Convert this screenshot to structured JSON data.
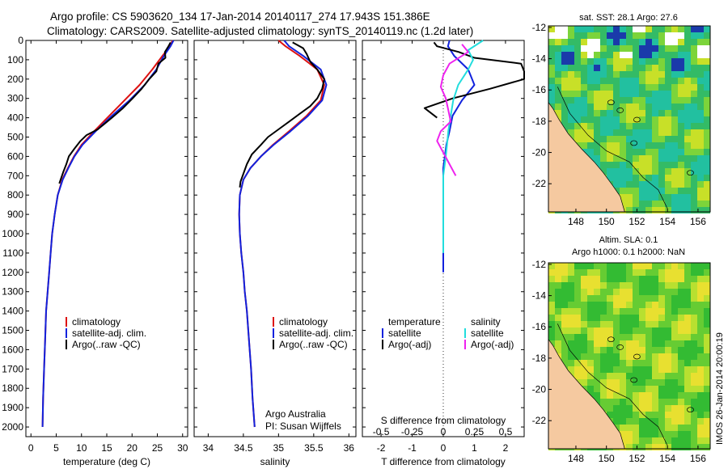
{
  "header": {
    "line1": "Argo profile: CS 5903620_134 17-Jan-2014 20140117_274 17.943S 151.386E",
    "line2": "Climatology: CARS2009. Satellite-adjusted climatology: synTS_20140119.nc (1.2d later)"
  },
  "colors": {
    "climatology": "#dd1111",
    "satellite": "#1122dd",
    "argo": "#000000",
    "sal_satellite": "#22dddd",
    "sal_argo": "#ee22ee",
    "land": "#f5c9a0"
  },
  "legend": {
    "climatology": "climatology",
    "satellite_adj": "satellite-adj. clim.",
    "argo_raw": "Argo(..raw -QC)",
    "diff_temperature": "temperature",
    "diff_salinity": "salinity",
    "satellite": "satellite",
    "argo_adj": "Argo(-adj)"
  },
  "credits": {
    "line1": "Argo Australia",
    "line2": "PI: Susan Wijffels"
  },
  "sst_map": {
    "title": "sat. SST: 28.1  Argo: 27.6",
    "xticks": [
      "148",
      "150",
      "152",
      "154",
      "156"
    ],
    "yticks": [
      "-12",
      "-14",
      "-16",
      "-18",
      "-20",
      "-22"
    ]
  },
  "sla_map": {
    "title1": "Altim. SLA: 0.1",
    "title2": "Argo h1000: 0.1  h2000: NaN",
    "xticks": [
      "148",
      "150",
      "152",
      "154",
      "156"
    ],
    "yticks": [
      "-12",
      "-14",
      "-16",
      "-18",
      "-20",
      "-22"
    ]
  },
  "watermark": "IMOS 26-Jan-2014 20:00:19",
  "chart_data": [
    {
      "type": "line",
      "xlabel": "temperature (deg C)",
      "ylabel": "",
      "xlim": [
        -1,
        31
      ],
      "ylim": [
        2050,
        0
      ],
      "xticks": [
        0,
        5,
        10,
        15,
        20,
        25,
        30
      ],
      "yticks": [
        0,
        100,
        200,
        300,
        400,
        500,
        600,
        700,
        800,
        900,
        1000,
        1100,
        1200,
        1300,
        1400,
        1500,
        1600,
        1700,
        1800,
        1900,
        2000
      ],
      "series": [
        {
          "name": "climatology",
          "color": "#dd1111",
          "x": [
            28.0,
            27.5,
            26.0,
            24.0,
            21.5,
            18.5,
            15.5,
            12.5,
            10.0,
            8.5,
            7.3,
            6.2,
            5.3,
            4.7,
            4.2,
            3.9,
            3.6,
            3.3,
            3.0,
            2.8,
            2.6,
            2.4,
            2.3
          ],
          "y": [
            0,
            30,
            80,
            150,
            230,
            310,
            390,
            470,
            540,
            600,
            660,
            720,
            800,
            900,
            1000,
            1100,
            1200,
            1300,
            1400,
            1550,
            1700,
            1850,
            2000
          ]
        },
        {
          "name": "satellite-adj. clim.",
          "color": "#1122dd",
          "x": [
            28.2,
            27.6,
            26.3,
            24.8,
            22.5,
            19.5,
            16.0,
            12.8,
            10.2,
            8.6,
            7.4,
            6.3,
            5.3,
            4.7,
            4.2,
            3.9,
            3.6,
            3.3,
            3.0,
            2.8,
            2.6,
            2.4,
            2.3
          ],
          "y": [
            0,
            30,
            80,
            150,
            230,
            310,
            390,
            470,
            540,
            600,
            660,
            720,
            800,
            900,
            1000,
            1100,
            1200,
            1300,
            1400,
            1550,
            1700,
            1850,
            2000
          ]
        },
        {
          "name": "Argo(..raw -QC)",
          "color": "#000000",
          "x": [
            27.6,
            27.2,
            26.5,
            26.6,
            25.2,
            24.8,
            23.4,
            21.9,
            20.1,
            18.2,
            16.0,
            13.2,
            11.0,
            9.8,
            8.6,
            7.5,
            7.0,
            6.4,
            6.0,
            5.6
          ],
          "y": [
            10,
            30,
            60,
            90,
            120,
            160,
            200,
            250,
            300,
            350,
            400,
            460,
            490,
            520,
            560,
            600,
            640,
            680,
            710,
            740
          ]
        }
      ]
    },
    {
      "type": "line",
      "xlabel": "salinity",
      "ylabel": "",
      "xlim": [
        33.8,
        36.1
      ],
      "ylim": [
        2050,
        0
      ],
      "xticks": [
        34,
        34.5,
        35,
        35.5,
        36
      ],
      "series": [
        {
          "name": "climatology",
          "color": "#dd1111",
          "x": [
            35.0,
            35.1,
            35.3,
            35.55,
            35.65,
            35.6,
            35.4,
            35.15,
            34.92,
            34.75,
            34.6,
            34.5,
            34.45,
            34.44,
            34.45,
            34.47,
            34.5,
            34.52,
            34.55,
            34.58,
            34.61,
            34.63,
            34.66
          ],
          "y": [
            0,
            30,
            80,
            150,
            230,
            310,
            390,
            470,
            540,
            600,
            660,
            720,
            800,
            900,
            1000,
            1100,
            1200,
            1300,
            1400,
            1550,
            1700,
            1850,
            2000
          ]
        },
        {
          "name": "satellite-adj. clim.",
          "color": "#1122dd",
          "x": [
            35.08,
            35.15,
            35.35,
            35.6,
            35.68,
            35.62,
            35.42,
            35.17,
            34.93,
            34.75,
            34.6,
            34.5,
            34.45,
            34.44,
            34.45,
            34.47,
            34.5,
            34.52,
            34.55,
            34.58,
            34.61,
            34.63,
            34.66
          ],
          "y": [
            0,
            30,
            80,
            150,
            230,
            310,
            390,
            470,
            540,
            600,
            660,
            720,
            800,
            900,
            1000,
            1100,
            1200,
            1300,
            1400,
            1550,
            1700,
            1850,
            2000
          ]
        },
        {
          "name": "Argo(..raw -QC)",
          "color": "#000000",
          "x": [
            35.2,
            35.35,
            35.4,
            35.45,
            35.55,
            35.65,
            35.62,
            35.55,
            35.45,
            35.3,
            35.15,
            35.0,
            34.85,
            34.75,
            34.62,
            34.55,
            34.5,
            34.46,
            34.45
          ],
          "y": [
            10,
            40,
            70,
            110,
            150,
            200,
            250,
            300,
            340,
            380,
            420,
            460,
            500,
            540,
            590,
            640,
            690,
            730,
            760
          ]
        }
      ]
    },
    {
      "type": "line",
      "xlabel": "T difference from climatology",
      "xlabel_top": "S difference from climatology",
      "ylabel": "",
      "xlim": [
        -2.6,
        2.6
      ],
      "ylim": [
        2050,
        0
      ],
      "xticks": [
        -2,
        -1,
        0,
        1,
        2
      ],
      "xticks_s": [
        -0.5,
        -0.25,
        0,
        0.25,
        0.5
      ],
      "s_scale": 0.25,
      "series": [
        {
          "name": "temperature satellite",
          "color": "#1122dd",
          "x": [
            0.2,
            0.15,
            0.35,
            0.8,
            1.0,
            0.6,
            0.3,
            0.2,
            0.1,
            0.05,
            0.0,
            0.0,
            0.0,
            0.0,
            0.0,
            0.0,
            0.0
          ],
          "y": [
            0,
            30,
            80,
            150,
            230,
            310,
            390,
            470,
            540,
            600,
            660,
            720,
            800,
            900,
            1000,
            1100,
            1200
          ]
        },
        {
          "name": "temperature Argo(-adj)",
          "color": "#000000",
          "x": [
            -0.3,
            -0.2,
            0.5,
            1.0,
            2.5,
            3.0,
            2.6,
            1.5,
            0.3,
            -0.6,
            -0.2
          ],
          "y": [
            10,
            30,
            60,
            90,
            120,
            160,
            200,
            250,
            300,
            350,
            400
          ]
        },
        {
          "name": "salinity satellite",
          "color": "#22dddd",
          "x": [
            0.32,
            0.2,
            0.24,
            0.2,
            0.12,
            0.08,
            0.06,
            0.04,
            0.03,
            0.02,
            0.0,
            0.0,
            0.0,
            0.0,
            0.0
          ],
          "y": [
            0,
            50,
            100,
            150,
            230,
            310,
            390,
            470,
            540,
            600,
            700,
            800,
            900,
            1000,
            1100
          ]
        },
        {
          "name": "salinity Argo(-adj)",
          "color": "#ee22ee",
          "x": [
            0.15,
            0.2,
            0.05,
            0.0,
            -0.02,
            0.02,
            0.04,
            0.06,
            -0.02,
            -0.05,
            0.0,
            0.05,
            0.1
          ],
          "y": [
            20,
            60,
            120,
            180,
            240,
            300,
            360,
            420,
            470,
            520,
            580,
            640,
            700
          ]
        }
      ]
    }
  ]
}
